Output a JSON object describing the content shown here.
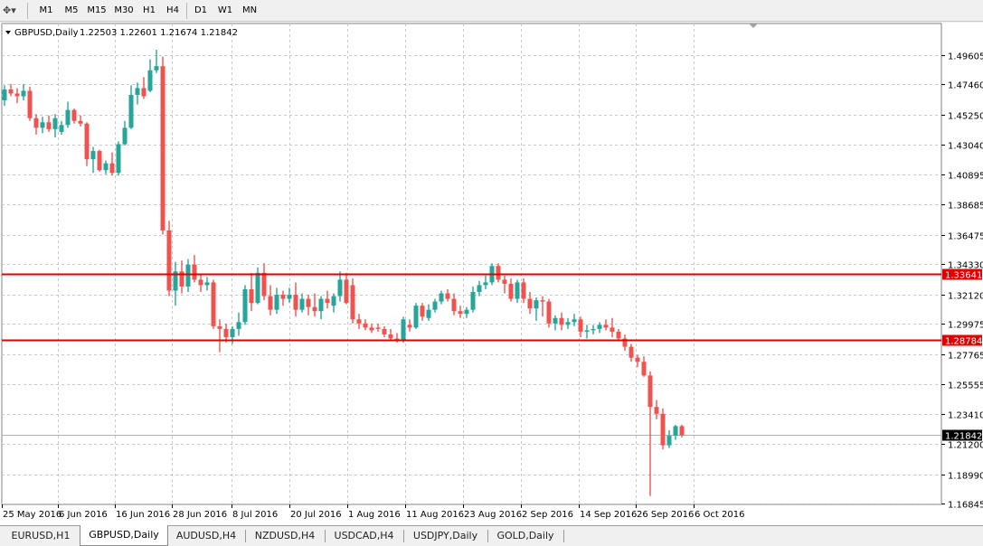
{
  "toolbar": {
    "tool_icon": "crosshair-icon",
    "timeframes": [
      "M1",
      "M5",
      "M15",
      "M30",
      "H1",
      "H4",
      "D1",
      "W1",
      "MN"
    ]
  },
  "chart": {
    "header": {
      "symbol": "GBPUSD,Daily",
      "ohlc": "1.22503 1.22601 1.21674 1.21842"
    },
    "colors": {
      "bull": "#26a69a",
      "bear": "#ef5350",
      "grid": "#c8c8c8",
      "hline": "#e00000",
      "hline_label_bg": "#e00000",
      "current_label_bg": "#000000"
    },
    "hlines": [
      {
        "price": 1.33641,
        "label": "1.33641"
      },
      {
        "price": 1.28784,
        "label": "1.28784"
      }
    ],
    "current_price": {
      "price": 1.21842,
      "label": "1.21842"
    }
  },
  "chart_data": {
    "type": "candlestick",
    "x_labels": [
      "25 May 2016",
      "6 Jun 2016",
      "16 Jun 2016",
      "28 Jun 2016",
      "8 Jul 2016",
      "20 Jul 2016",
      "1 Aug 2016",
      "11 Aug 2016",
      "23 Aug 2016",
      "2 Sep 2016",
      "14 Sep 2016",
      "26 Sep 2016",
      "6 Oct 2016"
    ],
    "y_ticks": [
      "1.49605",
      "1.47460",
      "1.45250",
      "1.43040",
      "1.40895",
      "1.38685",
      "1.36475",
      "1.34330",
      "1.32120",
      "1.29975",
      "1.27765",
      "1.25555",
      "1.23410",
      "1.21200",
      "1.18990",
      "1.16845"
    ],
    "ylim": [
      1.16845,
      1.49605
    ],
    "candles": [
      [
        1.463,
        1.474,
        1.459,
        1.471
      ],
      [
        1.471,
        1.475,
        1.466,
        1.468
      ],
      [
        1.468,
        1.472,
        1.461,
        1.466
      ],
      [
        1.466,
        1.475,
        1.463,
        1.47
      ],
      [
        1.47,
        1.473,
        1.448,
        1.45
      ],
      [
        1.45,
        1.453,
        1.438,
        1.443
      ],
      [
        1.443,
        1.451,
        1.439,
        1.447
      ],
      [
        1.447,
        1.452,
        1.44,
        1.442
      ],
      [
        1.442,
        1.453,
        1.436,
        1.45
      ],
      [
        1.44,
        1.448,
        1.438,
        1.445
      ],
      [
        1.445,
        1.462,
        1.443,
        1.456
      ],
      [
        1.456,
        1.457,
        1.446,
        1.448
      ],
      [
        1.448,
        1.452,
        1.444,
        1.446
      ],
      [
        1.446,
        1.447,
        1.415,
        1.42
      ],
      [
        1.42,
        1.429,
        1.41,
        1.426
      ],
      [
        1.426,
        1.427,
        1.411,
        1.412
      ],
      [
        1.412,
        1.419,
        1.409,
        1.417
      ],
      [
        1.417,
        1.425,
        1.408,
        1.41
      ],
      [
        1.41,
        1.433,
        1.408,
        1.431
      ],
      [
        1.431,
        1.448,
        1.43,
        1.443
      ],
      [
        1.443,
        1.474,
        1.442,
        1.467
      ],
      [
        1.467,
        1.476,
        1.46,
        1.472
      ],
      [
        1.472,
        1.48,
        1.464,
        1.466
      ],
      [
        1.47,
        1.493,
        1.469,
        1.485
      ],
      [
        1.485,
        1.5,
        1.483,
        1.488
      ],
      [
        1.488,
        1.495,
        1.365,
        1.368
      ],
      [
        1.368,
        1.375,
        1.32,
        1.324
      ],
      [
        1.324,
        1.345,
        1.313,
        1.338
      ],
      [
        1.338,
        1.346,
        1.322,
        1.327
      ],
      [
        1.327,
        1.347,
        1.323,
        1.343
      ],
      [
        1.343,
        1.35,
        1.33,
        1.332
      ],
      [
        1.332,
        1.336,
        1.323,
        1.328
      ],
      [
        1.328,
        1.334,
        1.324,
        1.33
      ],
      [
        1.33,
        1.332,
        1.296,
        1.298
      ],
      [
        1.298,
        1.303,
        1.279,
        1.296
      ],
      [
        1.296,
        1.3,
        1.286,
        1.29
      ],
      [
        1.29,
        1.298,
        1.285,
        1.296
      ],
      [
        1.296,
        1.308,
        1.291,
        1.301
      ],
      [
        1.301,
        1.328,
        1.299,
        1.325
      ],
      [
        1.325,
        1.337,
        1.309,
        1.315
      ],
      [
        1.315,
        1.341,
        1.314,
        1.337
      ],
      [
        1.337,
        1.344,
        1.317,
        1.32
      ],
      [
        1.32,
        1.328,
        1.306,
        1.31
      ],
      [
        1.31,
        1.326,
        1.307,
        1.321
      ],
      [
        1.321,
        1.324,
        1.313,
        1.318
      ],
      [
        1.318,
        1.326,
        1.315,
        1.321
      ],
      [
        1.321,
        1.33,
        1.305,
        1.31
      ],
      [
        1.31,
        1.322,
        1.308,
        1.318
      ],
      [
        1.318,
        1.321,
        1.306,
        1.312
      ],
      [
        1.312,
        1.322,
        1.305,
        1.309
      ],
      [
        1.309,
        1.32,
        1.303,
        1.318
      ],
      [
        1.318,
        1.324,
        1.311,
        1.315
      ],
      [
        1.313,
        1.322,
        1.308,
        1.32
      ],
      [
        1.32,
        1.338,
        1.316,
        1.332
      ],
      [
        1.332,
        1.337,
        1.314,
        1.315
      ],
      [
        1.328,
        1.333,
        1.3,
        1.303
      ],
      [
        1.303,
        1.307,
        1.296,
        1.3
      ],
      [
        1.3,
        1.303,
        1.295,
        1.297
      ],
      [
        1.297,
        1.3,
        1.293,
        1.295
      ],
      [
        1.297,
        1.3,
        1.294,
        1.296
      ],
      [
        1.296,
        1.298,
        1.29,
        1.292
      ],
      [
        1.292,
        1.296,
        1.287,
        1.289
      ],
      [
        1.289,
        1.293,
        1.286,
        1.288
      ],
      [
        1.288,
        1.305,
        1.286,
        1.303
      ],
      [
        1.299,
        1.303,
        1.294,
        1.297
      ],
      [
        1.297,
        1.315,
        1.296,
        1.313
      ],
      [
        1.313,
        1.315,
        1.302,
        1.305
      ],
      [
        1.304,
        1.314,
        1.302,
        1.31
      ],
      [
        1.31,
        1.318,
        1.308,
        1.316
      ],
      [
        1.316,
        1.324,
        1.314,
        1.322
      ],
      [
        1.322,
        1.325,
        1.316,
        1.318
      ],
      [
        1.318,
        1.322,
        1.306,
        1.309
      ],
      [
        1.309,
        1.313,
        1.304,
        1.307
      ],
      [
        1.307,
        1.312,
        1.304,
        1.31
      ],
      [
        1.31,
        1.327,
        1.308,
        1.323
      ],
      [
        1.323,
        1.331,
        1.32,
        1.328
      ],
      [
        1.328,
        1.335,
        1.325,
        1.33
      ],
      [
        1.33,
        1.344,
        1.328,
        1.342
      ],
      [
        1.342,
        1.344,
        1.33,
        1.332
      ],
      [
        1.332,
        1.335,
        1.322,
        1.329
      ],
      [
        1.329,
        1.333,
        1.316,
        1.318
      ],
      [
        1.318,
        1.332,
        1.315,
        1.33
      ],
      [
        1.33,
        1.333,
        1.315,
        1.318
      ],
      [
        1.318,
        1.323,
        1.307,
        1.311
      ],
      [
        1.311,
        1.319,
        1.302,
        1.317
      ],
      [
        1.317,
        1.32,
        1.305,
        1.316
      ],
      [
        1.316,
        1.318,
        1.297,
        1.3
      ],
      [
        1.3,
        1.306,
        1.295,
        1.304
      ],
      [
        1.304,
        1.308,
        1.295,
        1.299
      ],
      [
        1.299,
        1.304,
        1.296,
        1.301
      ],
      [
        1.301,
        1.307,
        1.298,
        1.303
      ],
      [
        1.303,
        1.305,
        1.29,
        1.294
      ],
      [
        1.294,
        1.299,
        1.289,
        1.295
      ],
      [
        1.295,
        1.299,
        1.292,
        1.296
      ],
      [
        1.296,
        1.301,
        1.293,
        1.299
      ],
      [
        1.299,
        1.303,
        1.295,
        1.297
      ],
      [
        1.297,
        1.304,
        1.29,
        1.294
      ],
      [
        1.294,
        1.296,
        1.287,
        1.289
      ],
      [
        1.289,
        1.292,
        1.28,
        1.283
      ],
      [
        1.283,
        1.285,
        1.272,
        1.275
      ],
      [
        1.275,
        1.277,
        1.268,
        1.272
      ],
      [
        1.272,
        1.276,
        1.261,
        1.262
      ],
      [
        1.262,
        1.265,
        1.174,
        1.239
      ],
      [
        1.239,
        1.244,
        1.23,
        1.234
      ],
      [
        1.234,
        1.238,
        1.208,
        1.211
      ],
      [
        1.211,
        1.222,
        1.209,
        1.218
      ],
      [
        1.218,
        1.226,
        1.215,
        1.225
      ],
      [
        1.225,
        1.226,
        1.2167,
        1.2184
      ]
    ]
  },
  "tabs": [
    "EURUSD,H1",
    "GBPUSD,Daily",
    "AUDUSD,H4",
    "NZDUSD,H4",
    "USDCAD,H4",
    "USDJPY,Daily",
    "GOLD,Daily"
  ],
  "active_tab": 1
}
